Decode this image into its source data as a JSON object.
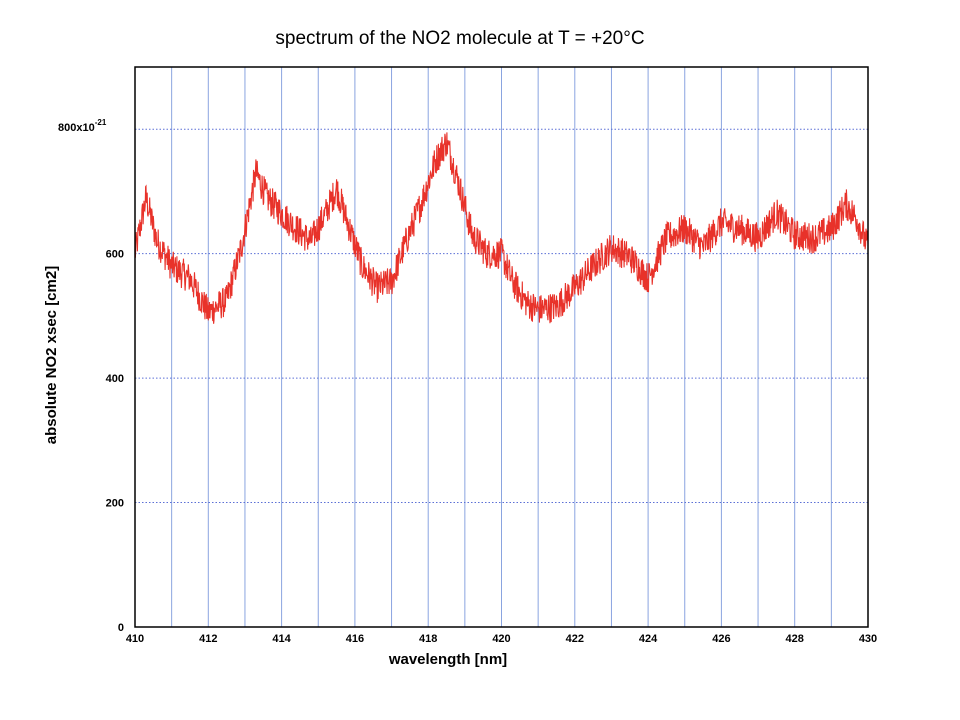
{
  "slide": {
    "title": "spectrum of the NO2 molecule at T = +20°C"
  },
  "chart_data": {
    "type": "line",
    "title": "",
    "xlabel": "wavelength [nm]",
    "ylabel": "absolute NO2 xsec [cm2]",
    "xlim": [
      410,
      430
    ],
    "ylim": [
      0,
      900
    ],
    "y_top_tick_text": "800x10",
    "y_top_tick_exponent": "-21",
    "x_ticks": [
      410,
      412,
      414,
      416,
      418,
      420,
      422,
      424,
      426,
      428,
      430
    ],
    "x_tick_labels": [
      "410",
      "412",
      "414",
      "416",
      "418",
      "420",
      "422",
      "424",
      "426",
      "428",
      "430"
    ],
    "y_ticks": [
      0,
      200,
      400,
      600,
      800
    ],
    "y_tick_labels": [
      "0",
      "200",
      "400",
      "600",
      ""
    ],
    "grid": {
      "vertical_every": 1,
      "horizontal_every": 200,
      "color": "#8aa4e0"
    },
    "series": [
      {
        "color": "#e8322a",
        "noise_amplitude": 25,
        "x": [
          410.0,
          410.3,
          410.6,
          411.0,
          411.5,
          412.0,
          412.5,
          412.9,
          413.3,
          413.6,
          414.0,
          414.4,
          414.8,
          415.2,
          415.5,
          415.8,
          416.2,
          416.6,
          417.0,
          417.4,
          417.8,
          418.2,
          418.5,
          418.8,
          419.2,
          419.6,
          420.0,
          420.3,
          420.7,
          421.0,
          421.5,
          422.0,
          422.5,
          423.0,
          423.5,
          424.0,
          424.5,
          425.0,
          425.5,
          426.0,
          426.5,
          427.0,
          427.5,
          428.0,
          428.5,
          429.0,
          429.4,
          429.7,
          430.0
        ],
        "y": [
          600,
          690,
          620,
          580,
          560,
          505,
          525,
          610,
          730,
          690,
          665,
          640,
          620,
          665,
          705,
          650,
          580,
          545,
          555,
          620,
          680,
          750,
          780,
          720,
          630,
          600,
          600,
          555,
          520,
          510,
          515,
          545,
          580,
          610,
          595,
          560,
          625,
          640,
          610,
          650,
          640,
          625,
          665,
          630,
          625,
          640,
          680,
          655,
          610
        ]
      }
    ]
  }
}
